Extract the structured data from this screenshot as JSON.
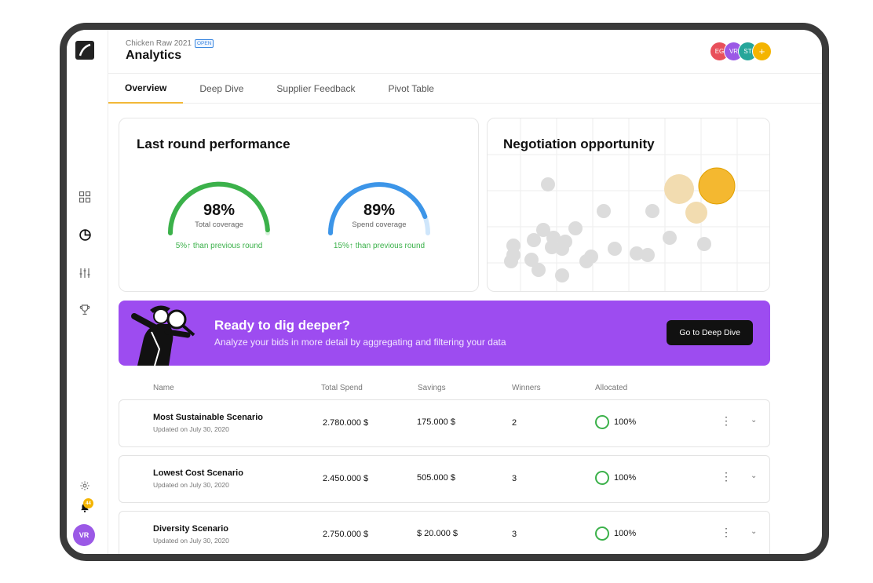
{
  "header": {
    "breadcrumb": "Chicken Raw 2021",
    "status_badge": "OPEN",
    "title": "Analytics",
    "avatars": [
      {
        "initials": "EG",
        "color": "#e8505b"
      },
      {
        "initials": "VR",
        "color": "#9b59e6"
      },
      {
        "initials": "ST",
        "color": "#26a69a"
      },
      {
        "initials": "+",
        "color": "#f4b400"
      }
    ]
  },
  "tabs": [
    {
      "label": "Overview",
      "active": true
    },
    {
      "label": "Deep Dive",
      "active": false
    },
    {
      "label": "Supplier Feedback",
      "active": false
    },
    {
      "label": "Pivot Table",
      "active": false
    }
  ],
  "performance": {
    "title": "Last round performance",
    "gauges": [
      {
        "value": "98%",
        "label": "Total coverage",
        "delta": "5%↑ than previous round",
        "fraction": 0.98,
        "color": "#3bb14a"
      },
      {
        "value": "89%",
        "label": "Spend coverage",
        "delta": "15%↑ than previous round",
        "fraction": 0.89,
        "color": "#3c95e8"
      }
    ]
  },
  "negotiation": {
    "title": "Negotiation opportunity"
  },
  "banner": {
    "title": "Ready to dig deeper?",
    "subtitle": "Analyze your bids in more detail by aggregating and filtering your data",
    "button": "Go to Deep Dive"
  },
  "table": {
    "columns": [
      "Name",
      "Total Spend",
      "Savings",
      "Winners",
      "Allocated"
    ],
    "rows": [
      {
        "name": "Most Sustainable Scenario",
        "updated": "Updated on July 30, 2020",
        "total_spend": "2.780.000 $",
        "savings": "175.000 $",
        "winners": "2",
        "allocated": "100%"
      },
      {
        "name": "Lowest Cost Scenario",
        "updated": "Updated on July 30, 2020",
        "total_spend": "2.450.000 $",
        "savings": "505.000 $",
        "winners": "3",
        "allocated": "100%"
      },
      {
        "name": "Diversity Scenario",
        "updated": "Updated on July 30, 2020",
        "total_spend": "2.750.000 $",
        "savings": "$ 20.000 $",
        "winners": "3",
        "allocated": "100%"
      }
    ]
  },
  "sidebar": {
    "icons": [
      "dashboard-icon",
      "pie-chart-icon",
      "sliders-icon",
      "trophy-icon"
    ],
    "bottom_icons": [
      "settings-icon",
      "bell-icon"
    ],
    "notification_count": "44",
    "user_initials": "VR"
  },
  "colors": {
    "accent": "#f2b838",
    "banner": "#9d4cf0",
    "success": "#3bb14a"
  }
}
